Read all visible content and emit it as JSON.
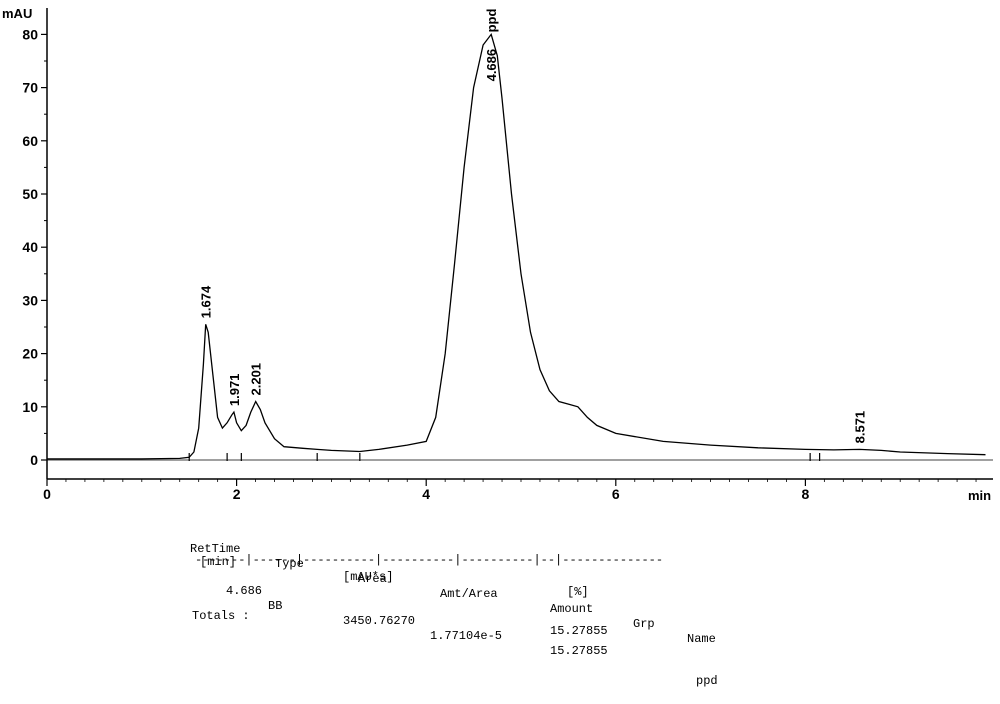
{
  "chart_data": {
    "type": "line",
    "xlabel": "min",
    "ylabel": "mAU",
    "xlim": [
      0,
      10
    ],
    "ylim": [
      -4,
      83
    ],
    "x_ticks": [
      0,
      2,
      4,
      6,
      8
    ],
    "y_ticks": [
      0,
      10,
      20,
      30,
      40,
      50,
      60,
      70,
      80
    ],
    "grid": false,
    "series": [
      {
        "x": [
          0,
          0.5,
          1.0,
          1.4,
          1.5,
          1.55,
          1.6,
          1.65,
          1.674,
          1.7,
          1.75,
          1.8,
          1.85,
          1.9,
          1.95,
          1.971,
          2.0,
          2.05,
          2.1,
          2.15,
          2.201,
          2.25,
          2.3,
          2.4,
          2.5,
          2.7,
          2.85,
          3.0,
          3.3,
          3.5,
          3.8,
          4.0,
          4.1,
          4.2,
          4.3,
          4.4,
          4.5,
          4.6,
          4.686,
          4.75,
          4.8,
          4.9,
          5.0,
          5.1,
          5.2,
          5.3,
          5.4,
          5.5,
          5.6,
          5.7,
          5.8,
          6.0,
          6.5,
          7.0,
          7.5,
          8.0,
          8.3,
          8.571,
          8.8,
          9.0,
          9.5,
          9.9
        ],
        "y": [
          0.2,
          0.2,
          0.2,
          0.3,
          0.5,
          1.5,
          6,
          18,
          25.5,
          24,
          16,
          8,
          6,
          7,
          8.5,
          9,
          7,
          5.5,
          6.5,
          9,
          11,
          9.5,
          7,
          4,
          2.5,
          2.2,
          2.0,
          1.8,
          1.6,
          2,
          2.8,
          3.5,
          8,
          20,
          37,
          55,
          70,
          78,
          80,
          76,
          68,
          50,
          35,
          24,
          17,
          13,
          11,
          10.5,
          10,
          8,
          6.5,
          5,
          3.5,
          2.8,
          2.3,
          2.0,
          1.9,
          2.0,
          1.8,
          1.5,
          1.2,
          1.0
        ]
      }
    ],
    "peak_labels": [
      {
        "x": 1.674,
        "y": 25.5,
        "text": "1.674"
      },
      {
        "x": 1.971,
        "y": 9,
        "text": "1.971"
      },
      {
        "x": 2.201,
        "y": 11,
        "text": "2.201"
      },
      {
        "x": 8.571,
        "y": 2.0,
        "text": "8.571"
      }
    ],
    "main_peak": {
      "x": 4.686,
      "y": 80,
      "rt_text": "4.686",
      "name_text": "ppd"
    },
    "baseline_markers_x": [
      1.5,
      1.9,
      2.05,
      2.85,
      3.3,
      8.05,
      8.15
    ]
  },
  "report": {
    "headers": [
      {
        "line1": "RetTime",
        "line2": "[min]"
      },
      {
        "line1": "Type",
        "line2": ""
      },
      {
        "line1": "Area",
        "line2": "[mAU*s]"
      },
      {
        "line1": "Amt/Area",
        "line2": ""
      },
      {
        "line1": "Amount",
        "line2": "[%]"
      },
      {
        "line1": "Grp",
        "line2": ""
      },
      {
        "line1": "Name",
        "line2": ""
      }
    ],
    "separator": "-------|------|----------|----------|----------|--|--------------",
    "row": {
      "rettime": "4.686",
      "type": "BB",
      "area": "3450.76270",
      "amt_area": "1.77104e-5",
      "amount": "15.27855",
      "grp": "",
      "name": "ppd"
    },
    "totals_label": "Totals :",
    "totals_amount": "15.27855"
  }
}
